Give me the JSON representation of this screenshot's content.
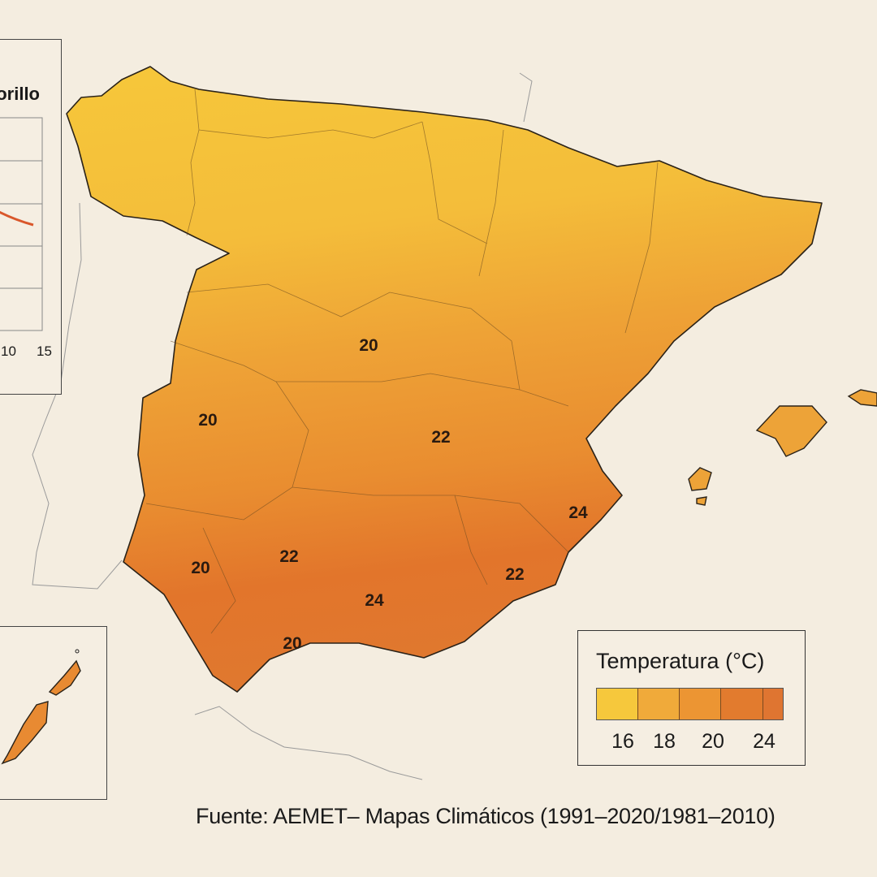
{
  "chart_inset": {
    "title_fragment": "orillo",
    "x_ticks": [
      "10",
      "15"
    ],
    "line_color": "#d9572b"
  },
  "map_labels": [
    {
      "region": "madrid",
      "value": "20"
    },
    {
      "region": "extremadura",
      "value": "20"
    },
    {
      "region": "castilla-la-mancha",
      "value": "22"
    },
    {
      "region": "valencia",
      "value": "24"
    },
    {
      "region": "huelva",
      "value": "20"
    },
    {
      "region": "sevilla",
      "value": "22"
    },
    {
      "region": "andalucia-east",
      "value": "24"
    },
    {
      "region": "murcia",
      "value": "22"
    },
    {
      "region": "cadiz",
      "value": "20"
    }
  ],
  "legend": {
    "title": "Temperatura (°C)",
    "colors": [
      "#f6c83c",
      "#f0aa3a",
      "#ec9533",
      "#e27b2e",
      "#df7531"
    ],
    "ticks": [
      "16",
      "18",
      "20",
      "24"
    ]
  },
  "source": "Fuente: AEMET– Mapas Climáticos (1991–2020/1981–2010)"
}
